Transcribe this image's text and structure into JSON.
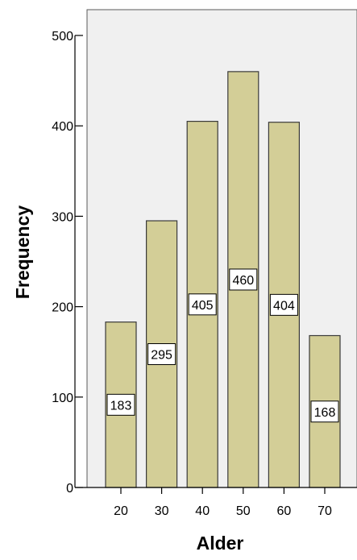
{
  "chart_data": {
    "type": "bar",
    "title": "",
    "xlabel": "Alder",
    "ylabel": "Frequency",
    "categories": [
      "20",
      "30",
      "40",
      "50",
      "60",
      "70"
    ],
    "values": [
      183,
      295,
      405,
      460,
      404,
      168
    ],
    "data_labels": [
      "183",
      "295",
      "405",
      "460",
      "404",
      "168"
    ],
    "ylim": [
      0,
      525
    ],
    "yticks": [
      0,
      100,
      200,
      300,
      400,
      500
    ],
    "ytick_labels": [
      "0",
      "100",
      "200",
      "300",
      "400",
      "500"
    ],
    "grid": false,
    "legend": "none",
    "colors": {
      "plot_background": "#f0f0f0",
      "bar_fill": "#d3ce97",
      "bar_stroke": "#3a3a3a",
      "label_box_fill": "#ffffff",
      "label_box_stroke": "#000000",
      "axis": "#000000",
      "text": "#000000"
    }
  }
}
